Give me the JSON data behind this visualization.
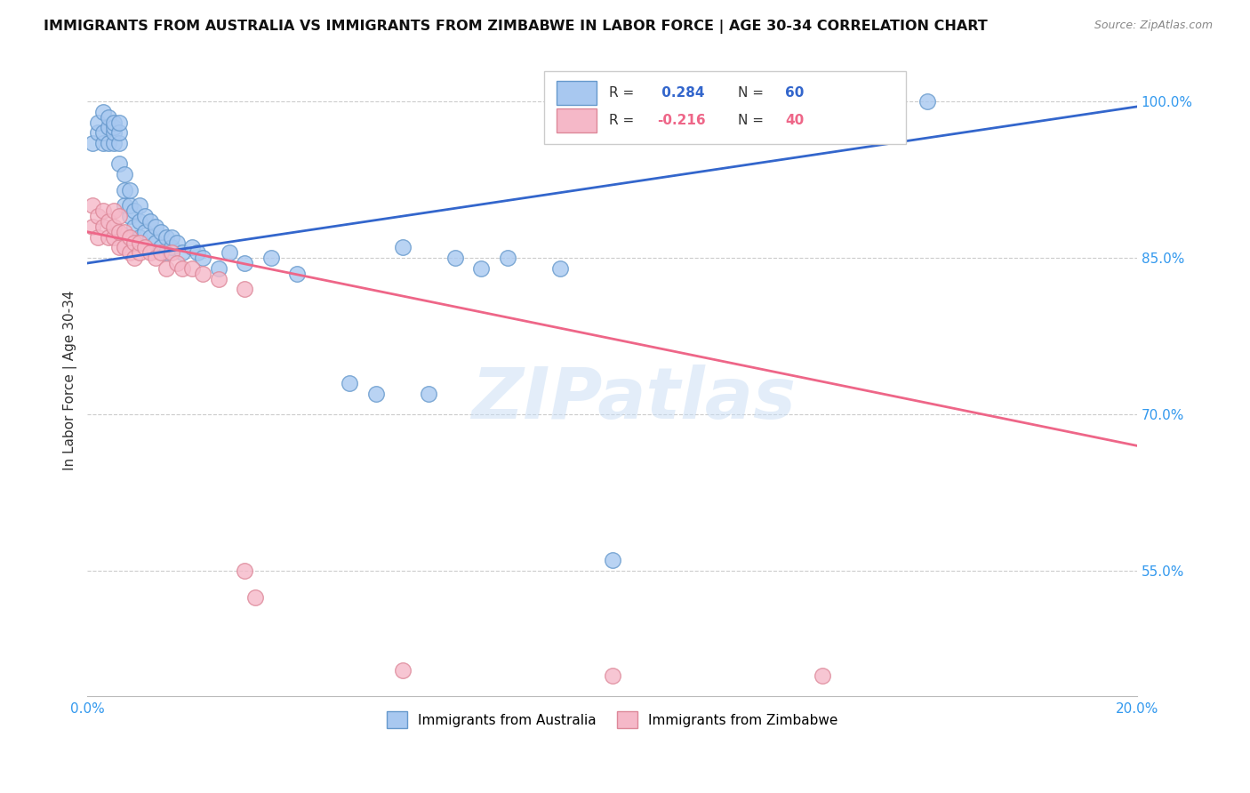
{
  "title": "IMMIGRANTS FROM AUSTRALIA VS IMMIGRANTS FROM ZIMBABWE IN LABOR FORCE | AGE 30-34 CORRELATION CHART",
  "source": "Source: ZipAtlas.com",
  "ylabel": "In Labor Force | Age 30-34",
  "xlim": [
    0.0,
    0.2
  ],
  "ylim": [
    0.43,
    1.035
  ],
  "right_yticks": [
    0.55,
    0.7,
    0.85,
    1.0
  ],
  "right_yticklabels": [
    "55.0%",
    "70.0%",
    "85.0%",
    "100.0%"
  ],
  "australia_color": "#a8c8f0",
  "zimbabwe_color": "#f5b8c8",
  "australia_edge": "#6699cc",
  "zimbabwe_edge": "#dd8899",
  "trend_australia_color": "#3366cc",
  "trend_zimbabwe_color": "#ee6688",
  "R_australia": 0.284,
  "N_australia": 60,
  "R_zimbabwe": -0.216,
  "N_zimbabwe": 40,
  "legend_label_australia": "Immigrants from Australia",
  "legend_label_zimbabwe": "Immigrants from Zimbabwe",
  "watermark": "ZIPatlas",
  "aus_trend_x": [
    0.0,
    0.2
  ],
  "aus_trend_y": [
    0.845,
    0.995
  ],
  "zim_trend_x": [
    0.0,
    0.2
  ],
  "zim_trend_y": [
    0.875,
    0.67
  ],
  "australia_x": [
    0.001,
    0.002,
    0.002,
    0.003,
    0.003,
    0.003,
    0.004,
    0.004,
    0.004,
    0.005,
    0.005,
    0.005,
    0.005,
    0.006,
    0.006,
    0.006,
    0.006,
    0.007,
    0.007,
    0.007,
    0.008,
    0.008,
    0.008,
    0.009,
    0.009,
    0.01,
    0.01,
    0.01,
    0.011,
    0.011,
    0.012,
    0.012,
    0.013,
    0.013,
    0.014,
    0.014,
    0.015,
    0.015,
    0.016,
    0.016,
    0.017,
    0.018,
    0.02,
    0.021,
    0.022,
    0.025,
    0.027,
    0.03,
    0.035,
    0.04,
    0.05,
    0.055,
    0.06,
    0.065,
    0.07,
    0.075,
    0.08,
    0.09,
    0.1,
    0.16
  ],
  "australia_y": [
    0.96,
    0.97,
    0.98,
    0.96,
    0.97,
    0.99,
    0.96,
    0.975,
    0.985,
    0.96,
    0.97,
    0.975,
    0.98,
    0.94,
    0.96,
    0.97,
    0.98,
    0.9,
    0.915,
    0.93,
    0.89,
    0.9,
    0.915,
    0.88,
    0.895,
    0.87,
    0.885,
    0.9,
    0.875,
    0.89,
    0.87,
    0.885,
    0.865,
    0.88,
    0.86,
    0.875,
    0.855,
    0.87,
    0.86,
    0.87,
    0.865,
    0.855,
    0.86,
    0.855,
    0.85,
    0.84,
    0.855,
    0.845,
    0.85,
    0.835,
    0.73,
    0.72,
    0.86,
    0.72,
    0.85,
    0.84,
    0.85,
    0.84,
    0.56,
    1.0
  ],
  "zimbabwe_x": [
    0.001,
    0.001,
    0.002,
    0.002,
    0.003,
    0.003,
    0.004,
    0.004,
    0.005,
    0.005,
    0.005,
    0.006,
    0.006,
    0.006,
    0.007,
    0.007,
    0.008,
    0.008,
    0.009,
    0.009,
    0.01,
    0.01,
    0.011,
    0.012,
    0.013,
    0.014,
    0.015,
    0.016,
    0.017,
    0.018,
    0.02,
    0.022,
    0.025,
    0.03,
    0.03,
    0.032,
    0.06,
    0.1,
    0.14,
    0.15
  ],
  "zimbabwe_y": [
    0.88,
    0.9,
    0.87,
    0.89,
    0.88,
    0.895,
    0.87,
    0.885,
    0.87,
    0.88,
    0.895,
    0.86,
    0.875,
    0.89,
    0.86,
    0.875,
    0.855,
    0.87,
    0.85,
    0.865,
    0.855,
    0.865,
    0.86,
    0.855,
    0.85,
    0.855,
    0.84,
    0.855,
    0.845,
    0.84,
    0.84,
    0.835,
    0.83,
    0.82,
    0.55,
    0.525,
    0.455,
    0.45,
    0.45,
    1.0
  ]
}
